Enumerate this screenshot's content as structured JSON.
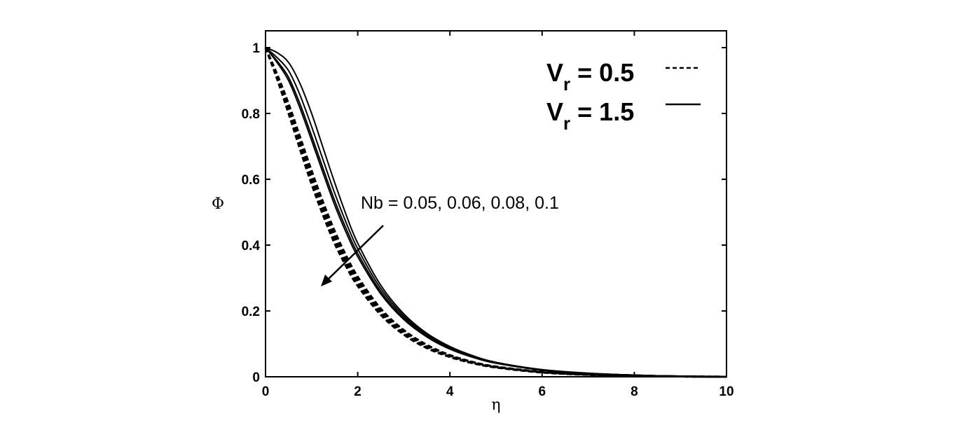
{
  "chart_data": {
    "type": "line",
    "xlabel": "η",
    "ylabel": "Φ",
    "xlim": [
      0,
      10
    ],
    "ylim": [
      0,
      1
    ],
    "xticks": [
      "0",
      "2",
      "4",
      "6",
      "8",
      "10"
    ],
    "yticks": [
      "0",
      "0.2",
      "0.4",
      "0.6",
      "0.8",
      "1"
    ],
    "grid": false,
    "legend": {
      "placement": "top-right",
      "entries": [
        {
          "main": "V",
          "sub": "r",
          "rest": " = 0.5",
          "style": "dashed"
        },
        {
          "main": "V",
          "sub": "r",
          "rest": " = 1.5",
          "style": "solid"
        }
      ]
    },
    "annotation": "Nb = 0.05, 0.06, 0.08, 0.1",
    "x": [
      0,
      0.25,
      0.5,
      0.75,
      1,
      1.25,
      1.5,
      1.75,
      2,
      2.5,
      3,
      3.5,
      4,
      4.5,
      5,
      6,
      7,
      8,
      9,
      10
    ],
    "series": [
      {
        "style": "dashed",
        "values": [
          1,
          0.905,
          0.8,
          0.69,
          0.585,
          0.49,
          0.405,
          0.335,
          0.276,
          0.188,
          0.128,
          0.087,
          0.06,
          0.041,
          0.028,
          0.013,
          0.006,
          0.003,
          0.001,
          0
        ]
      },
      {
        "style": "dashed",
        "values": [
          1,
          0.91,
          0.81,
          0.702,
          0.598,
          0.502,
          0.417,
          0.345,
          0.284,
          0.194,
          0.132,
          0.09,
          0.062,
          0.042,
          0.029,
          0.014,
          0.006,
          0.003,
          0.001,
          0
        ]
      },
      {
        "style": "dashed",
        "values": [
          1,
          0.915,
          0.82,
          0.715,
          0.612,
          0.516,
          0.43,
          0.356,
          0.294,
          0.2,
          0.137,
          0.093,
          0.064,
          0.044,
          0.03,
          0.014,
          0.007,
          0.003,
          0.001,
          0
        ]
      },
      {
        "style": "dashed",
        "values": [
          1,
          0.92,
          0.83,
          0.728,
          0.626,
          0.53,
          0.443,
          0.368,
          0.304,
          0.207,
          0.142,
          0.097,
          0.066,
          0.045,
          0.031,
          0.015,
          0.007,
          0.003,
          0.001,
          0
        ]
      },
      {
        "style": "solid",
        "values": [
          1,
          0.955,
          0.9,
          0.815,
          0.718,
          0.618,
          0.522,
          0.438,
          0.365,
          0.252,
          0.174,
          0.121,
          0.084,
          0.059,
          0.041,
          0.02,
          0.01,
          0.005,
          0.002,
          0
        ]
      },
      {
        "style": "solid",
        "values": [
          1,
          0.96,
          0.91,
          0.828,
          0.732,
          0.632,
          0.535,
          0.45,
          0.375,
          0.259,
          0.179,
          0.124,
          0.086,
          0.06,
          0.042,
          0.021,
          0.01,
          0.005,
          0.002,
          0
        ]
      },
      {
        "style": "solid",
        "values": [
          1,
          0.97,
          0.93,
          0.855,
          0.76,
          0.658,
          0.558,
          0.468,
          0.389,
          0.268,
          0.185,
          0.128,
          0.089,
          0.062,
          0.043,
          0.021,
          0.01,
          0.005,
          0.002,
          0
        ]
      },
      {
        "style": "solid",
        "values": [
          1,
          0.985,
          0.955,
          0.89,
          0.8,
          0.695,
          0.59,
          0.492,
          0.406,
          0.278,
          0.191,
          0.132,
          0.092,
          0.064,
          0.044,
          0.022,
          0.011,
          0.005,
          0.002,
          0
        ]
      }
    ]
  }
}
